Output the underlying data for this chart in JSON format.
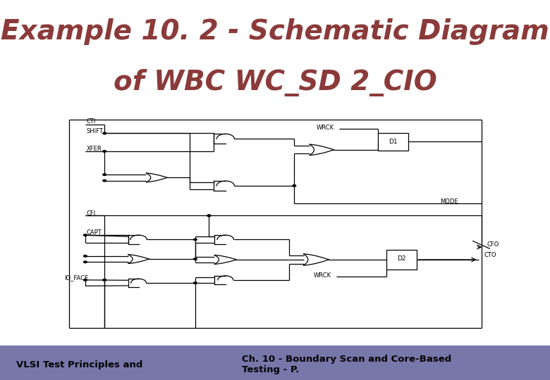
{
  "title_line1": "Example 10. 2 - Schematic Diagram",
  "title_line2": "of WBC WC_SD 2_CIO",
  "title_color": "#8B3A3A",
  "title_fontsize": 28,
  "bg_color": "#FFFFFF",
  "footer_color": "#7777AA",
  "footer_left": "VLSI Test Principles and",
  "footer_right": "Ch. 10 - Boundary Scan and Core-Based\nTesting - P.",
  "footer_fontsize": 9.5,
  "line_color": "#000000",
  "label_fontsize": 6.5
}
